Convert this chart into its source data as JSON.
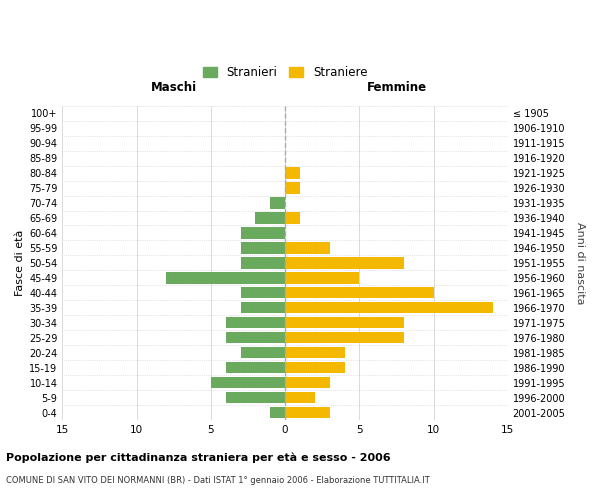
{
  "age_groups": [
    "0-4",
    "5-9",
    "10-14",
    "15-19",
    "20-24",
    "25-29",
    "30-34",
    "35-39",
    "40-44",
    "45-49",
    "50-54",
    "55-59",
    "60-64",
    "65-69",
    "70-74",
    "75-79",
    "80-84",
    "85-89",
    "90-94",
    "95-99",
    "100+"
  ],
  "birth_years": [
    "2001-2005",
    "1996-2000",
    "1991-1995",
    "1986-1990",
    "1981-1985",
    "1976-1980",
    "1971-1975",
    "1966-1970",
    "1961-1965",
    "1956-1960",
    "1951-1955",
    "1946-1950",
    "1941-1945",
    "1936-1940",
    "1931-1935",
    "1926-1930",
    "1921-1925",
    "1916-1920",
    "1911-1915",
    "1906-1910",
    "≤ 1905"
  ],
  "maschi": [
    1,
    4,
    5,
    4,
    3,
    4,
    4,
    3,
    3,
    8,
    3,
    3,
    3,
    2,
    1,
    0,
    0,
    0,
    0,
    0,
    0
  ],
  "femmine": [
    3,
    2,
    3,
    4,
    4,
    8,
    8,
    14,
    10,
    5,
    8,
    3,
    0,
    1,
    0,
    1,
    1,
    0,
    0,
    0,
    0
  ],
  "male_color": "#6aaa5e",
  "female_color": "#f5b800",
  "background_color": "#ffffff",
  "grid_color": "#cccccc",
  "center_line_color": "#aaaaaa",
  "title": "Popolazione per cittadinanza straniera per età e sesso - 2006",
  "subtitle": "COMUNE DI SAN VITO DEI NORMANNI (BR) - Dati ISTAT 1° gennaio 2006 - Elaborazione TUTTITALIA.IT",
  "xlabel_left": "Maschi",
  "xlabel_right": "Femmine",
  "ylabel_left": "Fasce di età",
  "ylabel_right": "Anni di nascita",
  "legend_male": "Stranieri",
  "legend_female": "Straniere",
  "xlim": 15,
  "bar_height": 0.75
}
